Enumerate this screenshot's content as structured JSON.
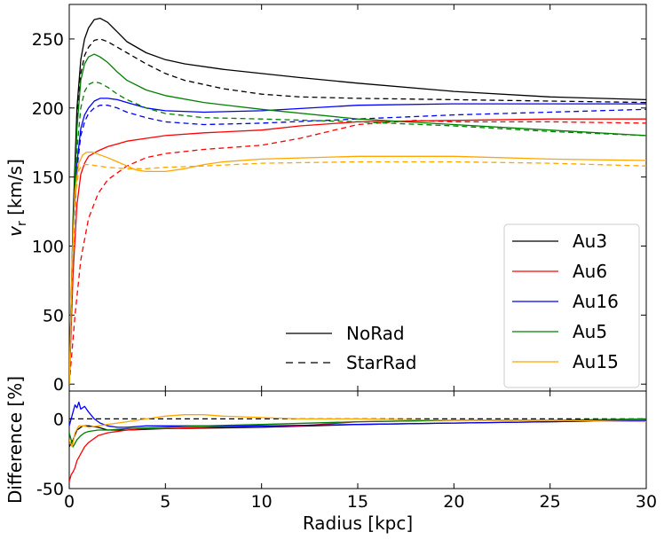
{
  "chart_data": [
    {
      "type": "line",
      "panel": "top",
      "xlabel": "",
      "ylabel_main": "v",
      "ylabel_sub": "r",
      "ylabel_unit": " [km/s]",
      "xlim": [
        0,
        30
      ],
      "ylim": [
        -5,
        275
      ],
      "yticks": [
        0,
        50,
        100,
        150,
        200,
        250
      ],
      "xticks": [
        0,
        5,
        10,
        15,
        20,
        25,
        30
      ],
      "series": [
        {
          "name": "Au3",
          "color": "#000000",
          "style": "solid",
          "x": [
            0,
            0.2,
            0.4,
            0.6,
            0.8,
            1.0,
            1.3,
            1.6,
            2.0,
            2.5,
            3,
            4,
            5,
            6,
            8,
            10,
            12,
            15,
            20,
            25,
            30
          ],
          "y": [
            0,
            120,
            200,
            235,
            250,
            258,
            264,
            265,
            262,
            255,
            248,
            240,
            235,
            232,
            228,
            225,
            222,
            218,
            212,
            208,
            206
          ]
        },
        {
          "name": "Au3",
          "color": "#000000",
          "style": "dashed",
          "x": [
            0,
            0.2,
            0.4,
            0.6,
            0.8,
            1.0,
            1.3,
            1.6,
            2.0,
            2.5,
            3,
            4,
            5,
            6,
            8,
            10,
            12,
            15,
            20,
            25,
            30
          ],
          "y": [
            0,
            110,
            190,
            225,
            238,
            244,
            249,
            250,
            248,
            244,
            240,
            232,
            225,
            220,
            214,
            210,
            208,
            207,
            206,
            205,
            204
          ]
        },
        {
          "name": "Au6",
          "color": "#ff0000",
          "style": "solid",
          "x": [
            0,
            0.2,
            0.4,
            0.6,
            0.8,
            1.0,
            1.5,
            2,
            3,
            4,
            5,
            7,
            10,
            12,
            15,
            20,
            25,
            30
          ],
          "y": [
            0,
            80,
            130,
            152,
            160,
            165,
            169,
            172,
            176,
            178,
            180,
            182,
            184,
            187,
            190,
            191,
            192,
            192
          ]
        },
        {
          "name": "Au6",
          "color": "#ff0000",
          "style": "dashed",
          "x": [
            0,
            0.3,
            0.6,
            1.0,
            1.5,
            2,
            3,
            4,
            5,
            7,
            10,
            12,
            15,
            18,
            20,
            25,
            30
          ],
          "y": [
            0,
            50,
            90,
            120,
            138,
            148,
            158,
            164,
            167,
            170,
            173,
            178,
            188,
            191,
            190,
            190,
            189
          ]
        },
        {
          "name": "Au16",
          "color": "#0000ff",
          "style": "solid",
          "x": [
            0,
            0.2,
            0.4,
            0.6,
            0.8,
            1.0,
            1.3,
            1.6,
            2.0,
            2.5,
            3,
            4,
            5,
            7,
            10,
            15,
            20,
            25,
            30
          ],
          "y": [
            0,
            110,
            160,
            185,
            195,
            200,
            205,
            207,
            207,
            206,
            204,
            200,
            198,
            197,
            198,
            202,
            203,
            203,
            203
          ]
        },
        {
          "name": "Au16",
          "color": "#0000ff",
          "style": "dashed",
          "x": [
            0,
            0.2,
            0.4,
            0.6,
            0.8,
            1.0,
            1.3,
            1.6,
            2.0,
            2.5,
            3,
            4,
            5,
            7,
            10,
            15,
            20,
            25,
            30
          ],
          "y": [
            0,
            100,
            155,
            180,
            190,
            196,
            200,
            202,
            202,
            200,
            197,
            193,
            190,
            188,
            189,
            192,
            195,
            197,
            199
          ]
        },
        {
          "name": "Au5",
          "color": "#008000",
          "style": "solid",
          "x": [
            0,
            0.2,
            0.4,
            0.6,
            0.8,
            1.0,
            1.3,
            1.6,
            2.0,
            2.5,
            3,
            4,
            5,
            7,
            10,
            15,
            20,
            25,
            30
          ],
          "y": [
            0,
            110,
            185,
            220,
            232,
            237,
            239,
            237,
            233,
            226,
            220,
            213,
            209,
            204,
            199,
            192,
            188,
            184,
            180
          ]
        },
        {
          "name": "Au5",
          "color": "#008000",
          "style": "dashed",
          "x": [
            0,
            0.2,
            0.4,
            0.6,
            0.8,
            1.0,
            1.3,
            1.6,
            2.0,
            2.5,
            3,
            4,
            5,
            7,
            10,
            15,
            20,
            25,
            30
          ],
          "y": [
            0,
            100,
            170,
            200,
            212,
            217,
            219,
            218,
            215,
            210,
            206,
            200,
            196,
            193,
            192,
            190,
            187,
            183,
            180
          ]
        },
        {
          "name": "Au15",
          "color": "#ffa500",
          "style": "solid",
          "x": [
            0,
            0.15,
            0.3,
            0.5,
            0.7,
            0.9,
            1.2,
            1.6,
            2.0,
            2.5,
            3,
            3.5,
            4,
            5,
            6,
            7,
            8,
            10,
            15,
            20,
            25,
            30
          ],
          "y": [
            0,
            90,
            140,
            160,
            166,
            168,
            168,
            166,
            164,
            161,
            158,
            155,
            154,
            154,
            156,
            159,
            161,
            163,
            165,
            165,
            163,
            162
          ]
        },
        {
          "name": "Au15",
          "color": "#ffa500",
          "style": "dashed",
          "x": [
            0,
            0.15,
            0.3,
            0.5,
            0.7,
            1.0,
            1.5,
            2,
            3,
            4,
            5,
            7,
            10,
            15,
            20,
            25,
            30
          ],
          "y": [
            0,
            80,
            135,
            155,
            159,
            159,
            158,
            157,
            156,
            156,
            157,
            158,
            160,
            161,
            161,
            160,
            158
          ]
        }
      ]
    },
    {
      "type": "line",
      "panel": "bottom",
      "xlabel": "Radius [kpc]",
      "ylabel": "Difference [%]",
      "xlim": [
        0,
        30
      ],
      "ylim": [
        -50,
        20
      ],
      "yticks": [
        -50,
        0
      ],
      "xticks": [
        0,
        5,
        10,
        15,
        20,
        25,
        30
      ],
      "series": [
        {
          "name": "Au3",
          "color": "#000000",
          "style": "dashed",
          "x": [
            0,
            30
          ],
          "y": [
            0,
            0
          ]
        },
        {
          "name": "Au3",
          "color": "#000000",
          "style": "solid",
          "x": [
            0,
            0.2,
            0.4,
            0.7,
            1.0,
            1.5,
            2,
            3,
            5,
            10,
            15,
            20,
            25,
            30
          ],
          "y": [
            -20,
            -15,
            -8,
            -5,
            -5,
            -6,
            -8,
            -8,
            -7,
            -6,
            -4,
            -3,
            -2,
            -1
          ]
        },
        {
          "name": "Au6",
          "color": "#ff0000",
          "style": "solid",
          "x": [
            0,
            0.1,
            0.2,
            0.3,
            0.4,
            0.6,
            0.8,
            1.0,
            1.5,
            2,
            3,
            4,
            5,
            7,
            10,
            12,
            15,
            20,
            25,
            30
          ],
          "y": [
            -45,
            -40,
            -38,
            -35,
            -30,
            -25,
            -20,
            -17,
            -12,
            -10,
            -8,
            -7,
            -7,
            -6,
            -5,
            -5,
            -2,
            -1,
            -1,
            -1
          ]
        },
        {
          "name": "Au16",
          "color": "#0000ff",
          "style": "solid",
          "x": [
            0,
            0.2,
            0.3,
            0.4,
            0.5,
            0.6,
            0.8,
            1.0,
            1.3,
            1.6,
            2.0,
            2.5,
            3,
            4,
            5,
            7,
            10,
            15,
            20,
            25,
            30
          ],
          "y": [
            -5,
            5,
            10,
            8,
            12,
            7,
            9,
            5,
            0,
            -3,
            -5,
            -6,
            -6,
            -5,
            -5,
            -5,
            -5,
            -4,
            -3,
            -2,
            -1
          ]
        },
        {
          "name": "Au5",
          "color": "#008000",
          "style": "solid",
          "x": [
            0,
            0.2,
            0.4,
            0.6,
            0.8,
            1.0,
            1.5,
            2,
            3,
            5,
            7,
            10,
            15,
            20,
            25,
            30
          ],
          "y": [
            -10,
            -20,
            -15,
            -12,
            -10,
            -9,
            -8,
            -8,
            -7,
            -6,
            -5,
            -4,
            -2,
            -1,
            -1,
            0
          ]
        },
        {
          "name": "Au15",
          "color": "#ffa500",
          "style": "solid",
          "x": [
            0,
            0.15,
            0.3,
            0.5,
            0.8,
            1.0,
            1.5,
            2,
            3,
            4,
            5,
            6,
            7,
            8,
            10,
            12,
            15,
            20,
            25,
            30
          ],
          "y": [
            -15,
            -20,
            -10,
            -5,
            -5,
            -6,
            -5,
            -4,
            -2,
            0,
            2,
            3,
            3,
            2,
            1,
            0,
            0,
            -1,
            -1,
            -2
          ]
        }
      ]
    }
  ],
  "legend": {
    "placement": "bottom-right",
    "entries": [
      {
        "label": "Au3",
        "color": "#000000"
      },
      {
        "label": "Au6",
        "color": "#ff0000"
      },
      {
        "label": "Au16",
        "color": "#0000ff"
      },
      {
        "label": "Au5",
        "color": "#008000"
      },
      {
        "label": "Au15",
        "color": "#ffa500"
      }
    ]
  },
  "style_legend": {
    "placement": "bottom-center",
    "entries": [
      {
        "label": "NoRad",
        "style": "solid"
      },
      {
        "label": "StarRad",
        "style": "dashed"
      }
    ]
  }
}
